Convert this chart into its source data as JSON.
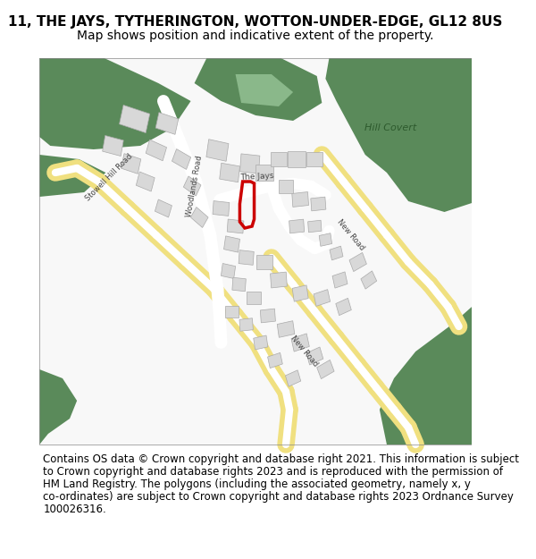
{
  "title_line1": "11, THE JAYS, TYTHERINGTON, WOTTON-UNDER-EDGE, GL12 8US",
  "title_line2": "Map shows position and indicative extent of the property.",
  "footer_lines": [
    "Contains OS data © Crown copyright and database right 2021. This information is subject",
    "to Crown copyright and database rights 2023 and is reproduced with the permission of",
    "HM Land Registry. The polygons (including the associated geometry, namely x, y",
    "co-ordinates) are subject to Crown copyright and database rights 2023 Ordnance Survey",
    "100026316."
  ],
  "title_fontsize": 11,
  "subtitle_fontsize": 10,
  "footer_fontsize": 8.5,
  "bg_color": "#ffffff",
  "green_dark": "#5a8a5a",
  "green_light": "#8ab88a",
  "road_yellow": "#f0e080",
  "building_color": "#d8d8d8",
  "building_edge": "#aaaaaa",
  "red_polygon": "#cc0000",
  "label_color": "#444444",
  "hill_covert_color": "#2d5a2d"
}
